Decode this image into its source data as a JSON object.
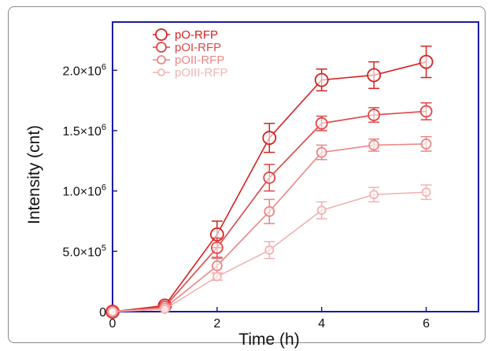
{
  "chart_data": {
    "type": "line",
    "title": "",
    "xlabel": "Time (h)",
    "ylabel": "Intensity (cnt)",
    "xlim": [
      0,
      7
    ],
    "ylim": [
      0,
      2400000
    ],
    "x_ticks": [
      0,
      2,
      4,
      6
    ],
    "x_tick_labels": [
      "0",
      "2",
      "4",
      "6"
    ],
    "y_ticks": [
      0,
      500000,
      1000000,
      1500000,
      2000000
    ],
    "y_tick_labels": [
      {
        "mantissa": "0",
        "exp": ""
      },
      {
        "mantissa": "5.0×10",
        "exp": "5"
      },
      {
        "mantissa": "1.0×10",
        "exp": "6"
      },
      {
        "mantissa": "1.5×10",
        "exp": "6"
      },
      {
        "mantissa": "2.0×10",
        "exp": "6"
      }
    ],
    "frame_color": "#1a1aa8",
    "legend_position": "top-left",
    "x": [
      0,
      1,
      2,
      3,
      4,
      5,
      6
    ],
    "series": [
      {
        "name": "pO-RFP",
        "color": "#d62020",
        "marker_r": 8,
        "values": [
          0,
          50000,
          640000,
          1440000,
          1920000,
          1960000,
          2070000
        ],
        "errors": [
          0,
          20000,
          110000,
          120000,
          90000,
          110000,
          130000
        ]
      },
      {
        "name": "pOI-RFP",
        "color": "#e04646",
        "marker_r": 7,
        "values": [
          0,
          40000,
          530000,
          1110000,
          1560000,
          1630000,
          1660000
        ],
        "errors": [
          0,
          15000,
          80000,
          110000,
          60000,
          60000,
          70000
        ]
      },
      {
        "name": "pOII-RFP",
        "color": "#ec8686",
        "marker_r": 6,
        "values": [
          0,
          30000,
          380000,
          830000,
          1320000,
          1380000,
          1390000
        ],
        "errors": [
          0,
          10000,
          60000,
          100000,
          60000,
          50000,
          60000
        ]
      },
      {
        "name": "pOIII-RFP",
        "color": "#f3b2b2",
        "marker_r": 5,
        "values": [
          0,
          20000,
          290000,
          510000,
          840000,
          970000,
          990000
        ],
        "errors": [
          0,
          10000,
          30000,
          70000,
          70000,
          60000,
          60000
        ]
      }
    ]
  }
}
